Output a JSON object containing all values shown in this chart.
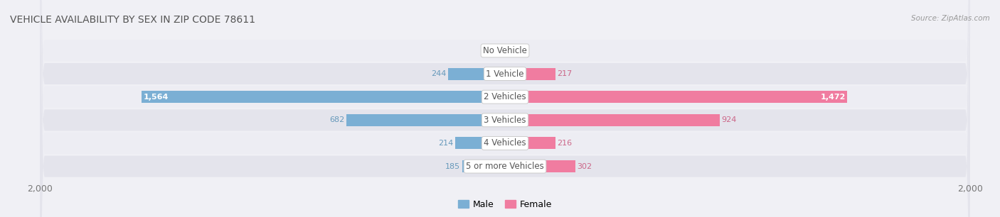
{
  "title": "VEHICLE AVAILABILITY BY SEX IN ZIP CODE 78611",
  "source": "Source: ZipAtlas.com",
  "categories": [
    "No Vehicle",
    "1 Vehicle",
    "2 Vehicles",
    "3 Vehicles",
    "4 Vehicles",
    "5 or more Vehicles"
  ],
  "male_values": [
    0,
    244,
    1564,
    682,
    214,
    185
  ],
  "female_values": [
    0,
    217,
    1472,
    924,
    216,
    302
  ],
  "male_color": "#7bafd4",
  "female_color": "#f07ca0",
  "male_label_color": "#6699bb",
  "female_label_color": "#cc6688",
  "row_bg_color_odd": "#ededf3",
  "row_bg_color_even": "#e4e4ec",
  "center_label_color": "#555555",
  "title_color": "#555555",
  "axis_max": 2000,
  "axis_label_color": "#777777",
  "bar_height": 0.52,
  "fig_bg": "#f0f0f5"
}
